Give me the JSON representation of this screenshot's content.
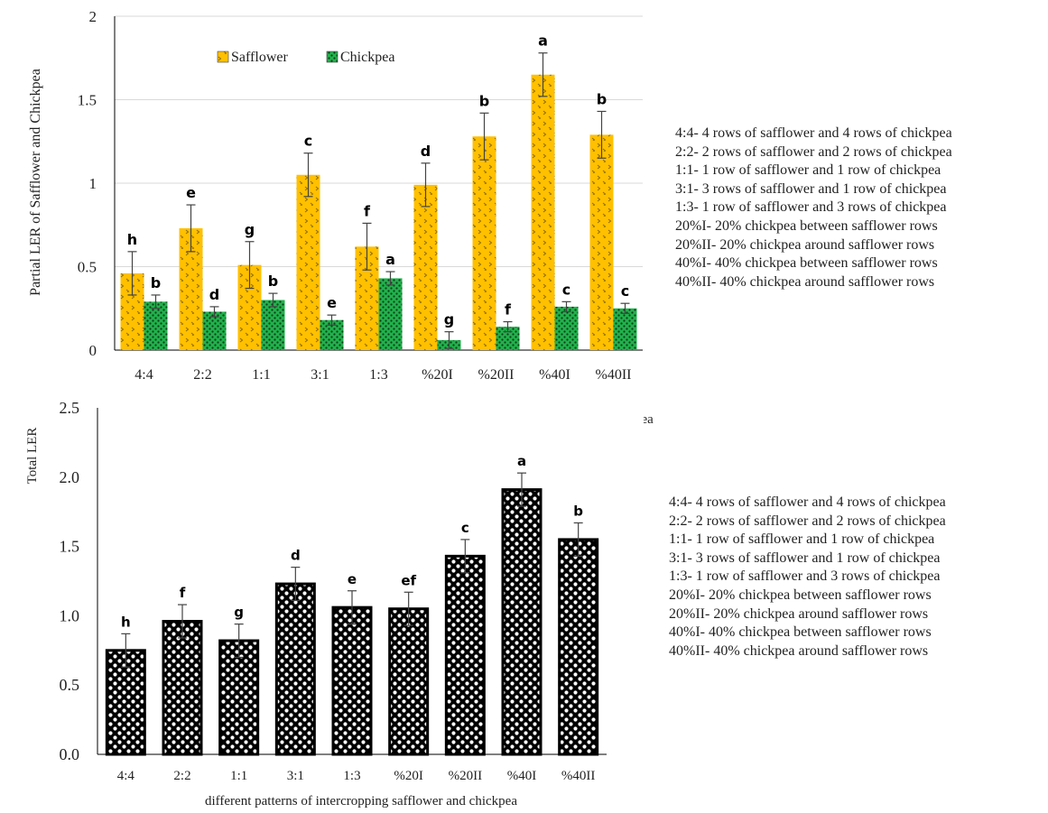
{
  "chart_data": [
    {
      "type": "bar",
      "ylabel": "Partial LER  of Safflower and Chickpea",
      "xlabel": "",
      "ylim": [
        0,
        2
      ],
      "yticks": [
        "0",
        "0.5",
        "1",
        "1.5",
        "2"
      ],
      "categories": [
        "4:4",
        "2:2",
        "1:1",
        "3:1",
        "1:3",
        "%20I",
        "%20II",
        "%40I",
        "%40II"
      ],
      "legend_position": "top-left",
      "grid": true,
      "series": [
        {
          "name": "Safflower",
          "color": "#FFC000",
          "values": [
            0.46,
            0.73,
            0.51,
            1.05,
            0.62,
            0.99,
            1.28,
            1.65,
            1.29
          ],
          "errors": [
            0.13,
            0.14,
            0.14,
            0.13,
            0.14,
            0.13,
            0.14,
            0.13,
            0.14
          ],
          "letters": [
            "h",
            "e",
            "g",
            "c",
            "f",
            "d",
            "b",
            "a",
            "b"
          ]
        },
        {
          "name": "Chickpea",
          "color": "#22B14C",
          "values": [
            0.29,
            0.23,
            0.3,
            0.18,
            0.43,
            0.06,
            0.14,
            0.26,
            0.25
          ],
          "errors": [
            0.04,
            0.03,
            0.04,
            0.03,
            0.04,
            0.05,
            0.03,
            0.03,
            0.03
          ],
          "letters": [
            "b",
            "d",
            "b",
            "e",
            "a",
            "g",
            "f",
            "c",
            "c"
          ]
        }
      ]
    },
    {
      "type": "bar",
      "ylabel": "Total LER",
      "xlabel": "different patterns of intercropping safflower and chickpea",
      "ylim": [
        0,
        2.5
      ],
      "yticks": [
        "0.0",
        "0.5",
        "1.0",
        "1.5",
        "2.0",
        "2.5"
      ],
      "categories": [
        "4:4",
        "2:2",
        "1:1",
        "3:1",
        "1:3",
        "%20I",
        "%20II",
        "%40I",
        "%40II"
      ],
      "grid": false,
      "series": [
        {
          "color": "#000000",
          "values": [
            0.75,
            0.96,
            0.82,
            1.23,
            1.06,
            1.05,
            1.43,
            1.91,
            1.55
          ],
          "errors": [
            0.12,
            0.12,
            0.12,
            0.12,
            0.12,
            0.12,
            0.12,
            0.12,
            0.12
          ],
          "letters": [
            "h",
            "f",
            "g",
            "d",
            "e",
            "ef",
            "c",
            "a",
            "b"
          ]
        }
      ]
    }
  ],
  "top_chart_fragment": "pea",
  "notes_top": [
    "4:4- 4 rows of safflower and 4 rows of chickpea",
    "2:2- 2 rows of safflower and 2 rows of chickpea",
    "1:1- 1 row of safflower and 1 row of chickpea",
    "3:1- 3 rows of safflower and 1 row of chickpea",
    "1:3- 1 row of safflower and 3 rows of chickpea",
    "20%I- 20% chickpea between safflower rows",
    "20%II- 20% chickpea around safflower rows",
    "40%I- 40% chickpea between safflower rows",
    "40%II- 40% chickpea around safflower rows"
  ],
  "notes_bottom": [
    "4:4- 4 rows of safflower and 4 rows of chickpea",
    "2:2- 2 rows of safflower and 2 rows of chickpea",
    "1:1- 1 row of safflower and 1 row of chickpea",
    "3:1- 3 rows of safflower and 1 row of chickpea",
    "1:3- 1 row of safflower and 3 rows of chickpea",
    "20%I- 20% chickpea between safflower rows",
    "20%II- 20% chickpea around safflower rows",
    "40%I- 40% chickpea between safflower rows",
    "40%II- 40% chickpea around safflower rows"
  ]
}
